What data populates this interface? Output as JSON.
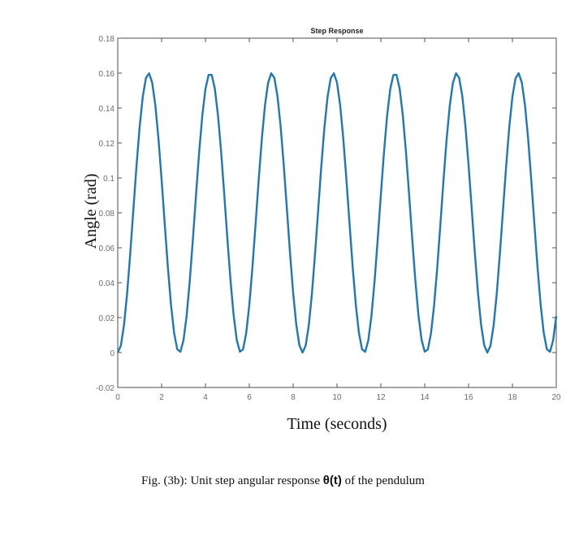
{
  "chart_data": {
    "type": "line",
    "title": "Step Response",
    "xlabel": "Time (seconds)",
    "ylabel": "Angle (rad)",
    "xlim": [
      0,
      20
    ],
    "ylim": [
      -0.02,
      0.18
    ],
    "xticks": [
      0,
      2,
      4,
      6,
      8,
      10,
      12,
      14,
      16,
      18,
      20
    ],
    "yticks": [
      -0.02,
      0,
      0.02,
      0.04,
      0.06,
      0.08,
      0.1,
      0.12,
      0.14,
      0.16,
      0.18
    ],
    "ytick_labels": [
      "-0.02",
      "0",
      "0.02",
      "0.04",
      "0.06",
      "0.08",
      "0.1",
      "0.12",
      "0.14",
      "0.16",
      "0.18"
    ],
    "grid": true,
    "legend": null,
    "series": [
      {
        "name": "theta(t)",
        "color": "#1f77b4",
        "description": "Undamped oscillation approx 0.08*(1 - cos(sqrt(5)*t)), peaks 0.16, minima 0, period ~2.81 s",
        "x": [
          0,
          0.7,
          1.405,
          2.1,
          2.81,
          3.5,
          4.215,
          4.9,
          5.62,
          6.3,
          7.025,
          7.7,
          8.43,
          9.1,
          9.835,
          10.5,
          11.24,
          11.9,
          12.645,
          13.3,
          14.05,
          14.7,
          15.455,
          16.2,
          16.86,
          17.6,
          18.265,
          19.0,
          19.67,
          20.0
        ],
        "values": [
          0,
          0.08,
          0.16,
          0.08,
          0,
          0.08,
          0.16,
          0.08,
          0,
          0.08,
          0.16,
          0.08,
          0,
          0.08,
          0.16,
          0.08,
          0,
          0.08,
          0.16,
          0.08,
          0,
          0.08,
          0.16,
          0.08,
          0,
          0.08,
          0.16,
          0.08,
          0,
          0.021
        ]
      }
    ]
  },
  "figure": {
    "caption_prefix": "Fig. (3b): Unit step angular response ",
    "caption_symbol": "θ(t)",
    "caption_suffix": " of the pendulum"
  }
}
